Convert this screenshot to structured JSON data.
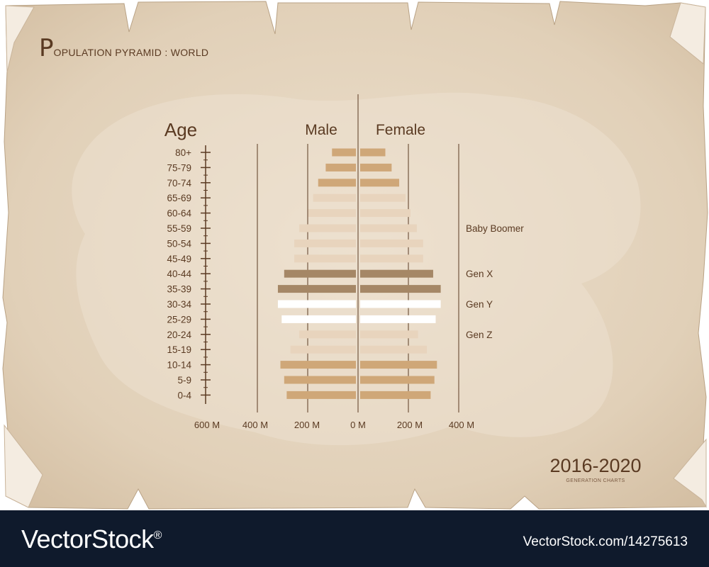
{
  "title_first_letter": "P",
  "title_rest": "OPULATION PYRAMID : WORLD",
  "period": "2016-2020",
  "subtitle": "GENERATION CHARTS",
  "watermark": {
    "brand": "VectorStock",
    "registered_mark": "®",
    "image_id": "VectorStock.com/14275613"
  },
  "colors": {
    "paper": "#e2d3bd",
    "paper_edge": "#c9b49a",
    "text": "#5a3a22",
    "dark_bar": "#a58766",
    "tan_bar": "#cfa778",
    "light_bar": "#e8d4bd",
    "white_bar": "#ffffff",
    "footer": "#0f1a2c"
  },
  "chart_data": {
    "type": "bar",
    "orientation": "horizontal-pyramid",
    "y_axis_label": "Age",
    "categories": [
      "80+",
      "75-79",
      "70-74",
      "65-69",
      "60-64",
      "55-59",
      "50-54",
      "45-49",
      "40-44",
      "35-39",
      "30-34",
      "25-29",
      "20-24",
      "15-19",
      "10-14",
      "5-9",
      "0-4"
    ],
    "series": [
      {
        "name": "Male",
        "values": [
          95,
          120,
          150,
          170,
          190,
          225,
          245,
          245,
          285,
          310,
          310,
          295,
          225,
          260,
          300,
          285,
          275
        ]
      },
      {
        "name": "Female",
        "values": [
          100,
          125,
          155,
          180,
          200,
          225,
          250,
          250,
          290,
          320,
          320,
          300,
          230,
          265,
          305,
          295,
          280
        ]
      }
    ],
    "bar_tone": [
      "tan",
      "tan",
      "tan",
      "light",
      "light",
      "light",
      "light",
      "light",
      "dark",
      "dark",
      "white",
      "white",
      "light",
      "light",
      "tan",
      "tan",
      "tan"
    ],
    "x_tick_labels": [
      "600 M",
      "400 M",
      "200 M",
      "0 M",
      "200 M",
      "400 M"
    ],
    "x_ticks_left": [
      400,
      200,
      0
    ],
    "x_ticks_right": [
      200,
      400
    ],
    "unit": "M",
    "generation_labels": [
      {
        "label": "Baby Boomer",
        "category": "55-59"
      },
      {
        "label": "Gen X",
        "category": "40-44"
      },
      {
        "label": "Gen Y",
        "category": "30-34"
      },
      {
        "label": "Gen Z",
        "category": "20-24"
      }
    ]
  }
}
